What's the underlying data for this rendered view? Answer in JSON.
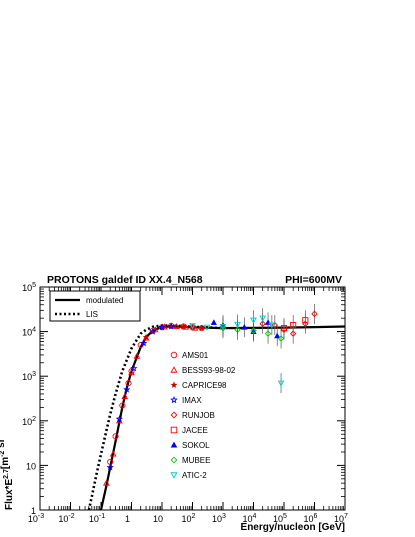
{
  "chart_data": {
    "type": "scatter",
    "title": "PROTONS galdef ID XX.4_N568",
    "title_right": "PHI=600MV",
    "xlabel": "Energy/nucleon [GeV]",
    "ylabel": "Flux*E^{2.7}[m^{-2} sr^{-1} s^{-1} GeV^{1.7}]",
    "xscale": "log",
    "yscale": "log",
    "xlim": [
      0.001,
      10000000
    ],
    "ylim": [
      1,
      100000
    ],
    "grid": false,
    "x_ticks": [
      {
        "value": 0.001,
        "base": "10",
        "exp": "-3"
      },
      {
        "value": 0.01,
        "base": "10",
        "exp": "-2"
      },
      {
        "value": 0.1,
        "base": "10",
        "exp": "-1"
      },
      {
        "value": 1,
        "base": "1",
        "exp": ""
      },
      {
        "value": 10,
        "base": "10",
        "exp": ""
      },
      {
        "value": 100,
        "base": "10",
        "exp": "2"
      },
      {
        "value": 1000,
        "base": "10",
        "exp": "3"
      },
      {
        "value": 10000,
        "base": "10",
        "exp": "4"
      },
      {
        "value": 100000,
        "base": "10",
        "exp": "5"
      },
      {
        "value": 1000000,
        "base": "10",
        "exp": "6"
      },
      {
        "value": 10000000,
        "base": "10",
        "exp": "7"
      }
    ],
    "y_ticks": [
      {
        "value": 1,
        "base": "1",
        "exp": ""
      },
      {
        "value": 10,
        "base": "10",
        "exp": ""
      },
      {
        "value": 100,
        "base": "10",
        "exp": "2"
      },
      {
        "value": 1000,
        "base": "10",
        "exp": "3"
      },
      {
        "value": 10000,
        "base": "10",
        "exp": "4"
      },
      {
        "value": 100000,
        "base": "10",
        "exp": "5"
      }
    ],
    "lines": [
      {
        "name": "modulated",
        "style": "solid",
        "color": "#000000",
        "x": [
          0.1,
          0.15,
          0.2,
          0.3,
          0.5,
          0.7,
          1,
          2,
          3,
          5,
          10,
          30,
          100,
          1000,
          10000,
          100000,
          1000000,
          10000000
        ],
        "y": [
          1,
          3.5,
          9,
          35,
          200,
          550,
          1300,
          4500,
          7500,
          10500,
          12800,
          13000,
          12500,
          12000,
          12100,
          12300,
          12600,
          13000
        ]
      },
      {
        "name": "LIS",
        "style": "dotted",
        "color": "#000000",
        "x": [
          0.04,
          0.05,
          0.07,
          0.1,
          0.2,
          0.3,
          0.5,
          1,
          2,
          3,
          5,
          10,
          30,
          100,
          1000
        ],
        "y": [
          1,
          2,
          6,
          18,
          140,
          400,
          1300,
          4200,
          9000,
          11000,
          12800,
          13800,
          13500,
          12800,
          12000
        ]
      }
    ],
    "series": [
      {
        "name": "AMS01",
        "marker": "circle-open",
        "color": "#ff0000",
        "x": [
          0.2,
          0.3,
          0.5,
          0.8,
          1,
          2,
          5,
          10,
          20,
          50,
          100,
          200
        ],
        "y": [
          12,
          45,
          220,
          700,
          1300,
          5000,
          10500,
          12500,
          13500,
          13000,
          12500,
          12000
        ]
      },
      {
        "name": "BESS93-98-02",
        "marker": "triangle-open",
        "color": "#ff0000",
        "x": [
          0.15,
          0.25,
          0.4,
          0.6,
          1,
          1.5,
          3,
          6,
          12,
          30,
          60,
          120
        ],
        "y": [
          4,
          18,
          100,
          350,
          1200,
          2800,
          7200,
          11000,
          12800,
          13000,
          12600,
          12000
        ]
      },
      {
        "name": "CAPRICE98",
        "marker": "star",
        "color": "#cc0000",
        "x": [
          3,
          5,
          10,
          20,
          50,
          100,
          200
        ],
        "y": [
          7500,
          10000,
          12500,
          13300,
          13000,
          12500,
          12000
        ]
      },
      {
        "name": "IMAX",
        "marker": "star-open",
        "color": "#0000ff",
        "x": [
          0.2,
          0.4,
          0.7,
          1.2,
          2.5,
          5,
          10,
          20
        ],
        "y": [
          9,
          110,
          500,
          1500,
          5500,
          10000,
          12500,
          13000
        ]
      },
      {
        "name": "RUNJOB",
        "marker": "diamond-open",
        "color": "#ff0000",
        "x": [
          20000,
          50000,
          100000,
          200000,
          500000,
          1000000
        ],
        "y": [
          15000,
          14000,
          11000,
          9000,
          15000,
          25000
        ]
      },
      {
        "name": "JACEE",
        "marker": "square-open",
        "color": "#ff0000",
        "x": [
          100000,
          200000,
          500000
        ],
        "y": [
          12000,
          14000,
          18000
        ]
      },
      {
        "name": "SOKOL",
        "marker": "triangle",
        "color": "#0000ff",
        "x": [
          500,
          1000,
          5000,
          10000,
          30000,
          60000
        ],
        "y": [
          16000,
          14000,
          12500,
          10000,
          16000,
          8000
        ]
      },
      {
        "name": "MUBEE",
        "marker": "diamond-open",
        "color": "#00cc00",
        "x": [
          1000,
          3000,
          10000,
          30000,
          80000
        ],
        "y": [
          12000,
          11000,
          10500,
          9000,
          7000
        ]
      },
      {
        "name": "ATIC-2",
        "marker": "triangle-down-open",
        "color": "#00cccc",
        "x": [
          100,
          300,
          1000,
          3000,
          10000,
          20000,
          40000,
          80000
        ],
        "y": [
          13500,
          12500,
          13000,
          14500,
          18000,
          20000,
          14000,
          700
        ]
      }
    ],
    "legend": {
      "lines_box": {
        "placement": "top-left",
        "entries": [
          "modulated",
          "LIS"
        ]
      },
      "markers_column": {
        "placement": "center",
        "entries": [
          "AMS01",
          "BESS93-98-02",
          "CAPRICE98",
          "IMAX",
          "RUNJOB",
          "JACEE",
          "SOKOL",
          "MUBEE",
          "ATIC-2"
        ]
      }
    }
  }
}
